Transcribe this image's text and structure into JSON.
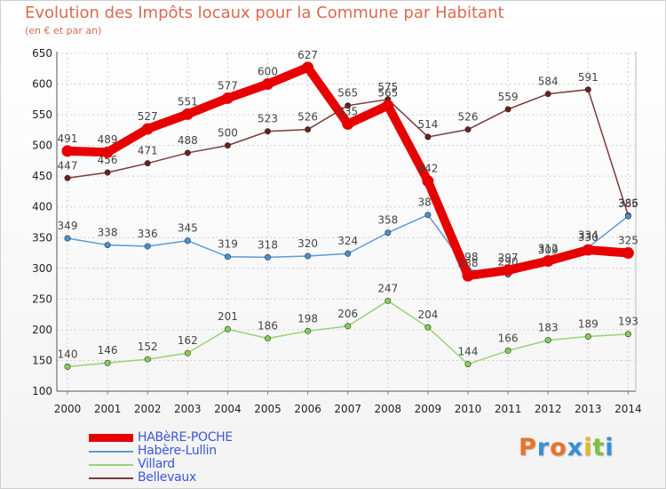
{
  "header": {
    "title": "Evolution des Impôts locaux pour la Commune par Habitant",
    "subtitle": "(en € et par an)"
  },
  "brand": {
    "letters": [
      "P",
      "r",
      "o",
      "x",
      "i",
      "t",
      "i"
    ],
    "colors": [
      "#e8742a",
      "#3a8fd9",
      "#e8742a",
      "#3a8fd9",
      "#e8b42a",
      "#7fbf3f",
      "#3a8fd9"
    ]
  },
  "colors": {
    "title": "#d96a4e",
    "legend_text": "#3b57d6",
    "axis": "#555555",
    "grid": "#d0d0d0"
  },
  "chart_data": {
    "type": "line",
    "title": "Evolution des Impôts locaux pour la Commune par Habitant",
    "subtitle": "(en € et par an)",
    "x": [
      2000,
      2001,
      2002,
      2003,
      2004,
      2005,
      2006,
      2007,
      2008,
      2009,
      2010,
      2011,
      2012,
      2013,
      2014
    ],
    "ylim": [
      100,
      650
    ],
    "yticks": [
      100,
      150,
      200,
      250,
      300,
      350,
      400,
      450,
      500,
      550,
      600,
      650
    ],
    "grid": true,
    "legend_position": "bottom-left",
    "series": [
      {
        "name": "HABèRE-POCHE",
        "color": "#e60000",
        "marker_color": "#e60000",
        "emphasis": true,
        "values": [
          491,
          489,
          527,
          551,
          577,
          600,
          627,
          535,
          565,
          442,
          288,
          297,
          312,
          330,
          325
        ]
      },
      {
        "name": "Habère-Lullin",
        "color": "#5b9bd5",
        "marker_color": "#4a90d0",
        "values": [
          349,
          338,
          336,
          345,
          319,
          318,
          320,
          324,
          358,
          387,
          298,
          290,
          309,
          334,
          385
        ]
      },
      {
        "name": "Villard",
        "color": "#9ad27a",
        "marker_color": "#86d04f",
        "values": [
          140,
          146,
          152,
          162,
          201,
          186,
          198,
          206,
          247,
          204,
          144,
          166,
          183,
          189,
          193
        ]
      },
      {
        "name": "Bellevaux",
        "color": "#7a3b3b",
        "marker_color": "#6b1f1f",
        "values": [
          447,
          456,
          471,
          488,
          500,
          523,
          526,
          565,
          575,
          514,
          526,
          559,
          584,
          591,
          386
        ]
      }
    ]
  }
}
